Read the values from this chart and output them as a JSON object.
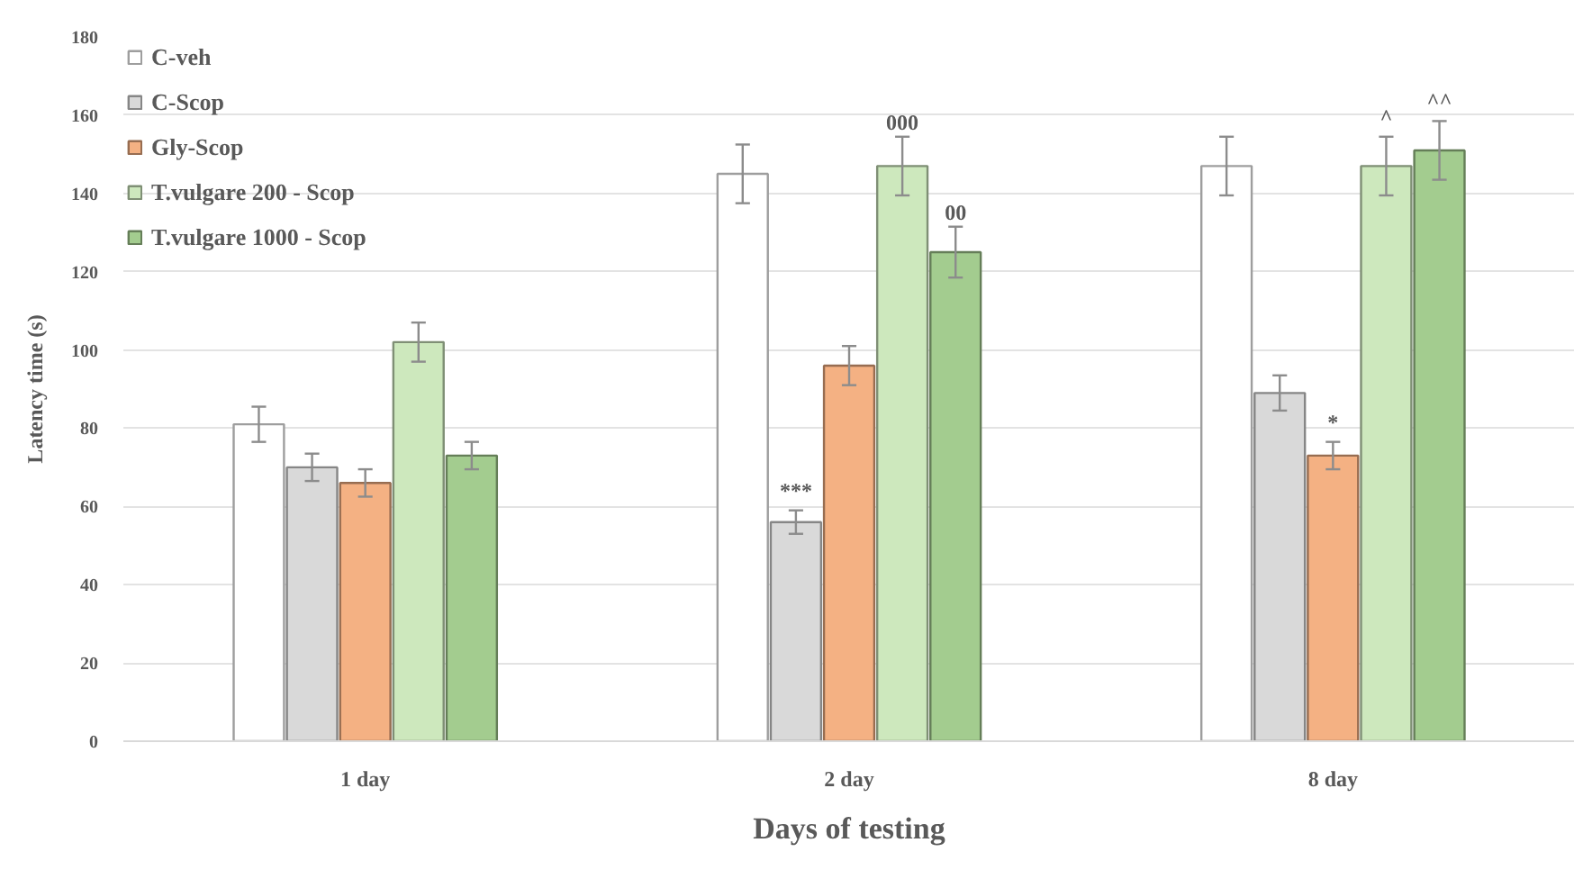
{
  "chart_data": {
    "type": "bar",
    "xlabel": "Days of testing",
    "ylabel": "Latency time (s)",
    "categories": [
      "1 day",
      "2 day",
      "8 day"
    ],
    "series": [
      {
        "name": "C-veh",
        "color": "#ffffff",
        "values": [
          81,
          145,
          147
        ],
        "errors": [
          4.5,
          7.5,
          7.5
        ]
      },
      {
        "name": "C-Scop",
        "color": "#d9d9d9",
        "values": [
          70,
          56,
          89
        ],
        "errors": [
          3.5,
          3,
          4.5
        ]
      },
      {
        "name": "Gly-Scop",
        "color": "#f4b183",
        "values": [
          66,
          96,
          73
        ],
        "errors": [
          3.5,
          5,
          3.5
        ]
      },
      {
        "name": "T.vulgare 200 - Scop",
        "color": "#cde8bd",
        "values": [
          102,
          147,
          147
        ],
        "errors": [
          5,
          7.5,
          7.5
        ]
      },
      {
        "name": "T.vulgare 1000 - Scop",
        "color": "#a3cc8f",
        "values": [
          73,
          125,
          151
        ],
        "errors": [
          3.5,
          6.5,
          7.5
        ]
      }
    ],
    "annotations": [
      "***",
      "000",
      "00",
      "*",
      "^",
      "^^"
    ],
    "ylim": [
      0,
      180
    ],
    "yticks": [
      0,
      20,
      40,
      60,
      80,
      100,
      120,
      140,
      160,
      180
    ],
    "grid": "y",
    "legend": "top left"
  }
}
